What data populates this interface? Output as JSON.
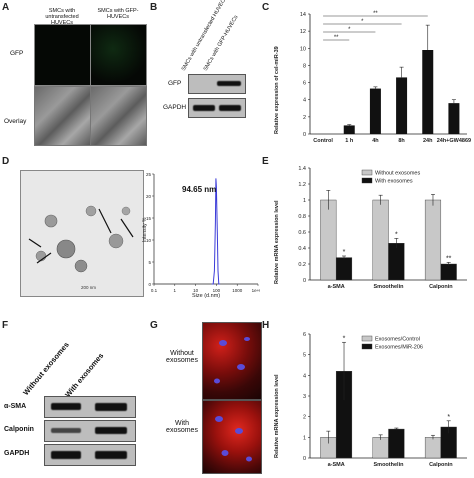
{
  "panels": {
    "A": {
      "label": "A",
      "col1_header": "SMCs with untransfected HUVECs",
      "col2_header": "SMCs with GFP-HUVECs",
      "row1_label": "GFP",
      "row2_label": "Overlay"
    },
    "B": {
      "label": "B",
      "lane1": "SMCs with untransfected HUVECs",
      "lane2": "SMCs with GFP-HUVECs",
      "row1": "GFP",
      "row2": "GAPDH"
    },
    "C": {
      "label": "C",
      "sig_marks": [
        "**",
        "*",
        "*",
        "**"
      ]
    },
    "D": {
      "label": "D",
      "peak_label": "94.65 nm",
      "tem_caption": "200 nm"
    },
    "E": {
      "label": "E"
    },
    "F": {
      "label": "F",
      "lane1": "Without exosomes",
      "lane2": "With exosomes",
      "rows": [
        "α-SMA",
        "Calponin",
        "GAPDH"
      ]
    },
    "G": {
      "label": "G",
      "row1": "Without exosomes",
      "row2": "With exosomes"
    },
    "H": {
      "label": "H"
    }
  },
  "chart_data": [
    {
      "panel": "C",
      "type": "bar",
      "categories": [
        "Control",
        "1 h",
        "4h",
        "8h",
        "24h",
        "24h+GW4869"
      ],
      "values": [
        0,
        1.0,
        5.3,
        6.6,
        9.8,
        3.6
      ],
      "errors": [
        0,
        0.1,
        0.2,
        1.2,
        2.9,
        0.4
      ],
      "ylabel": "Relative expression of cel-miR-39",
      "ylim": [
        0,
        14
      ],
      "yticks": [
        "0",
        "2",
        "4",
        "6",
        "8",
        "10",
        "12",
        "14"
      ],
      "color": "#111111"
    },
    {
      "panel": "D",
      "type": "line",
      "x": [
        60,
        70,
        80,
        90,
        95,
        100,
        110,
        120,
        130,
        150
      ],
      "y": [
        0,
        0,
        3,
        14,
        24,
        22,
        12,
        3,
        0,
        0
      ],
      "ylabel": "Intensity %",
      "xlabel": "Size (d.nm)",
      "xscale": "log",
      "xticks": [
        "0.1",
        "1",
        "10",
        "100",
        "1000",
        "1e+04"
      ],
      "yticks": [
        "0",
        "5",
        "10",
        "15",
        "20",
        "25"
      ],
      "ylim": [
        0,
        25
      ]
    },
    {
      "panel": "E",
      "type": "bar",
      "categories": [
        "a-SMA",
        "Smoothelin",
        "Calponin"
      ],
      "series": [
        {
          "name": "Without exosomes",
          "values": [
            1.0,
            1.0,
            1.0
          ],
          "errors": [
            0.12,
            0.06,
            0.07
          ],
          "color": "#c8c8c8"
        },
        {
          "name": "With exosomes",
          "values": [
            0.28,
            0.46,
            0.2
          ],
          "errors": [
            0.02,
            0.06,
            0.02
          ],
          "color": "#111111"
        }
      ],
      "sig_marks": [
        "*",
        "*",
        "**"
      ],
      "ylabel": "Relative mRNA expression level",
      "ylim": [
        0,
        1.4
      ],
      "yticks": [
        "0",
        "0.2",
        "0.4",
        "0.6",
        "0.8",
        "1",
        "1.2",
        "1.4"
      ],
      "legend": "top-center"
    },
    {
      "panel": "H",
      "type": "bar",
      "categories": [
        "a-SMA",
        "Smoothelin",
        "Calponin"
      ],
      "series": [
        {
          "name": "Exosomes/Control",
          "values": [
            1.0,
            1.0,
            1.0
          ],
          "errors": [
            0.3,
            0.12,
            0.1
          ],
          "color": "#c8c8c8"
        },
        {
          "name": "Exosomes/MiR-206",
          "values": [
            4.2,
            1.4,
            1.5
          ],
          "errors": [
            1.4,
            0.05,
            0.3
          ],
          "color": "#111111"
        }
      ],
      "sig_marks": [
        "*",
        "",
        "*"
      ],
      "ylabel": "Relative mRNA expression level",
      "ylim": [
        0,
        6
      ],
      "yticks": [
        "0",
        "1",
        "2",
        "3",
        "4",
        "5",
        "6"
      ],
      "legend": "top-center"
    }
  ]
}
